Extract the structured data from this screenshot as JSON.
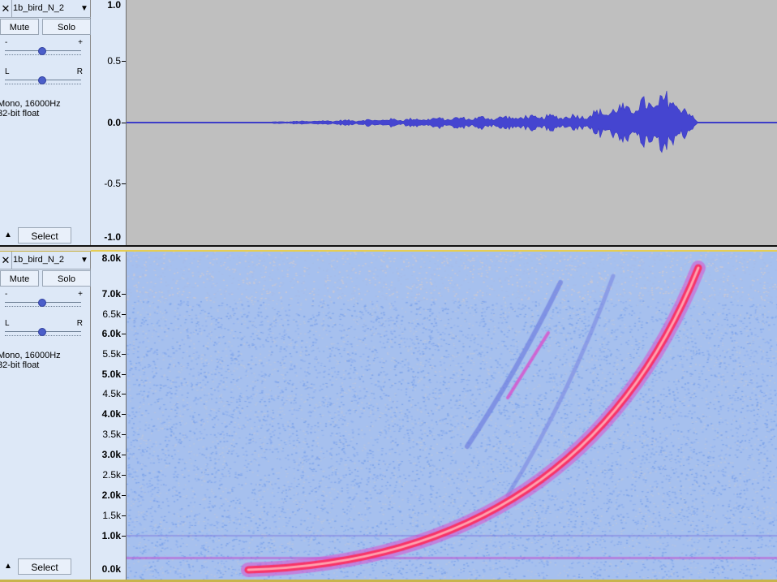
{
  "tracks": [
    {
      "name": "1b_bird_N_2",
      "close_glyph": "✕",
      "dropdown_glyph": "▼",
      "mute_label": "Mute",
      "solo_label": "Solo",
      "gain_minus": "-",
      "gain_plus": "+",
      "gain_level": 0.5,
      "pan_left": "L",
      "pan_right": "R",
      "pan_level": 0.5,
      "format_line1": "Mono, 16000Hz",
      "format_line2": "32-bit float",
      "collapse_glyph": "▲",
      "select_label": "Select",
      "view": "waveform",
      "ruler_ticks": [
        "1.0",
        "0.5",
        "0.0",
        "-0.5",
        "-1.0"
      ]
    },
    {
      "name": "1b_bird_N_2",
      "close_glyph": "✕",
      "dropdown_glyph": "▼",
      "mute_label": "Mute",
      "solo_label": "Solo",
      "gain_minus": "-",
      "gain_plus": "+",
      "gain_level": 0.5,
      "pan_left": "L",
      "pan_right": "R",
      "pan_level": 0.5,
      "format_line1": "Mono, 16000Hz",
      "format_line2": "32-bit float",
      "collapse_glyph": "▲",
      "select_label": "Select",
      "view": "spectrogram",
      "ruler_ticks": [
        "8.0k",
        "7.0k",
        "6.5k",
        "6.0k",
        "5.5k",
        "5.0k",
        "4.5k",
        "4.0k",
        "3.5k",
        "3.0k",
        "2.5k",
        "2.0k",
        "1.5k",
        "1.0k",
        "0.0k"
      ]
    }
  ],
  "colors": {
    "waveform": "#3c3cc8",
    "waveform_bg": "#bfbfbf",
    "spectrogram_noise": "#98b7ec",
    "spectrogram_hot": "#ff1f4f",
    "spectrogram_warm": "#e040c8",
    "panel_bg": "#dde8f7"
  }
}
